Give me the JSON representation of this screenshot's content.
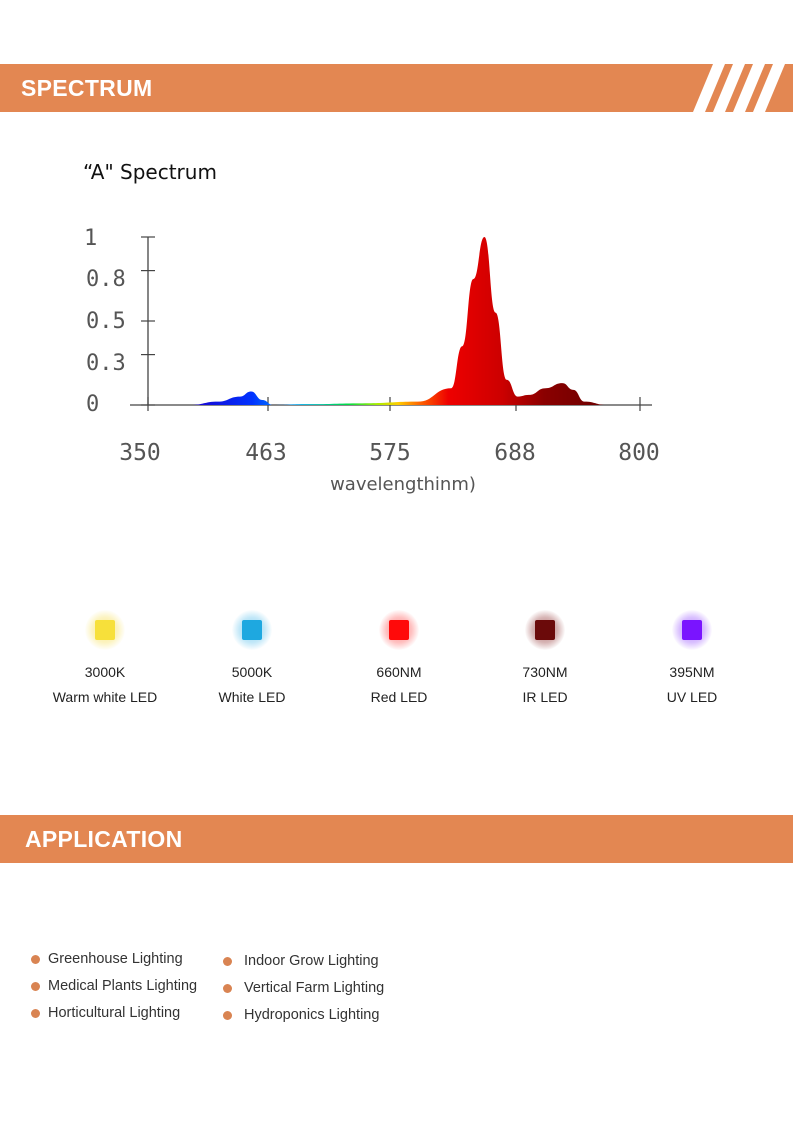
{
  "sections": {
    "spectrum_title": "SPECTRUM",
    "application_title": "APPLICATION"
  },
  "accent_color": "#e38752",
  "chart_title": "“A\" Spectrum",
  "chart_data": {
    "type": "area",
    "title": "“A\" Spectrum",
    "xlabel": "wavelengthinm)",
    "ylabel": "",
    "x_ticks": [
      "350",
      "463",
      "575",
      "688",
      "800"
    ],
    "y_ticks": [
      "0",
      "0.3",
      "0.5",
      "0.8",
      "1"
    ],
    "xlim": [
      350,
      800
    ],
    "ylim": [
      0,
      1
    ],
    "grid": false,
    "x": [
      395,
      420,
      440,
      450,
      460,
      470,
      500,
      550,
      600,
      630,
      640,
      650,
      660,
      670,
      680,
      690,
      700,
      715,
      730,
      740,
      750,
      770
    ],
    "y": [
      0,
      0.02,
      0.05,
      0.08,
      0.03,
      0.0,
      0.005,
      0.01,
      0.02,
      0.1,
      0.35,
      0.75,
      1.0,
      0.55,
      0.15,
      0.05,
      0.06,
      0.1,
      0.13,
      0.09,
      0.02,
      0.0
    ]
  },
  "leds": [
    {
      "spec": "3000K",
      "name": "Warm white LED",
      "color": "#f7e03a",
      "glow": "#f9e98a"
    },
    {
      "spec": "5000K",
      "name": "White LED",
      "color": "#1ea8e0",
      "glow": "#8fd4f2"
    },
    {
      "spec": "660NM",
      "name": "Red LED",
      "color": "#ff0a0a",
      "glow": "#ff8a8a"
    },
    {
      "spec": "730NM",
      "name": "IR LED",
      "color": "#6b0a0a",
      "glow": "#b47575"
    },
    {
      "spec": "395NM",
      "name": "UV LED",
      "color": "#7a14ff",
      "glow": "#b98aff"
    }
  ],
  "applications": {
    "left": [
      "Greenhouse Lighting",
      "Medical Plants Lighting",
      "Horticultural Lighting"
    ],
    "right": [
      "Indoor Grow Lighting",
      "Vertical Farm Lighting",
      "Hydroponics Lighting"
    ]
  }
}
